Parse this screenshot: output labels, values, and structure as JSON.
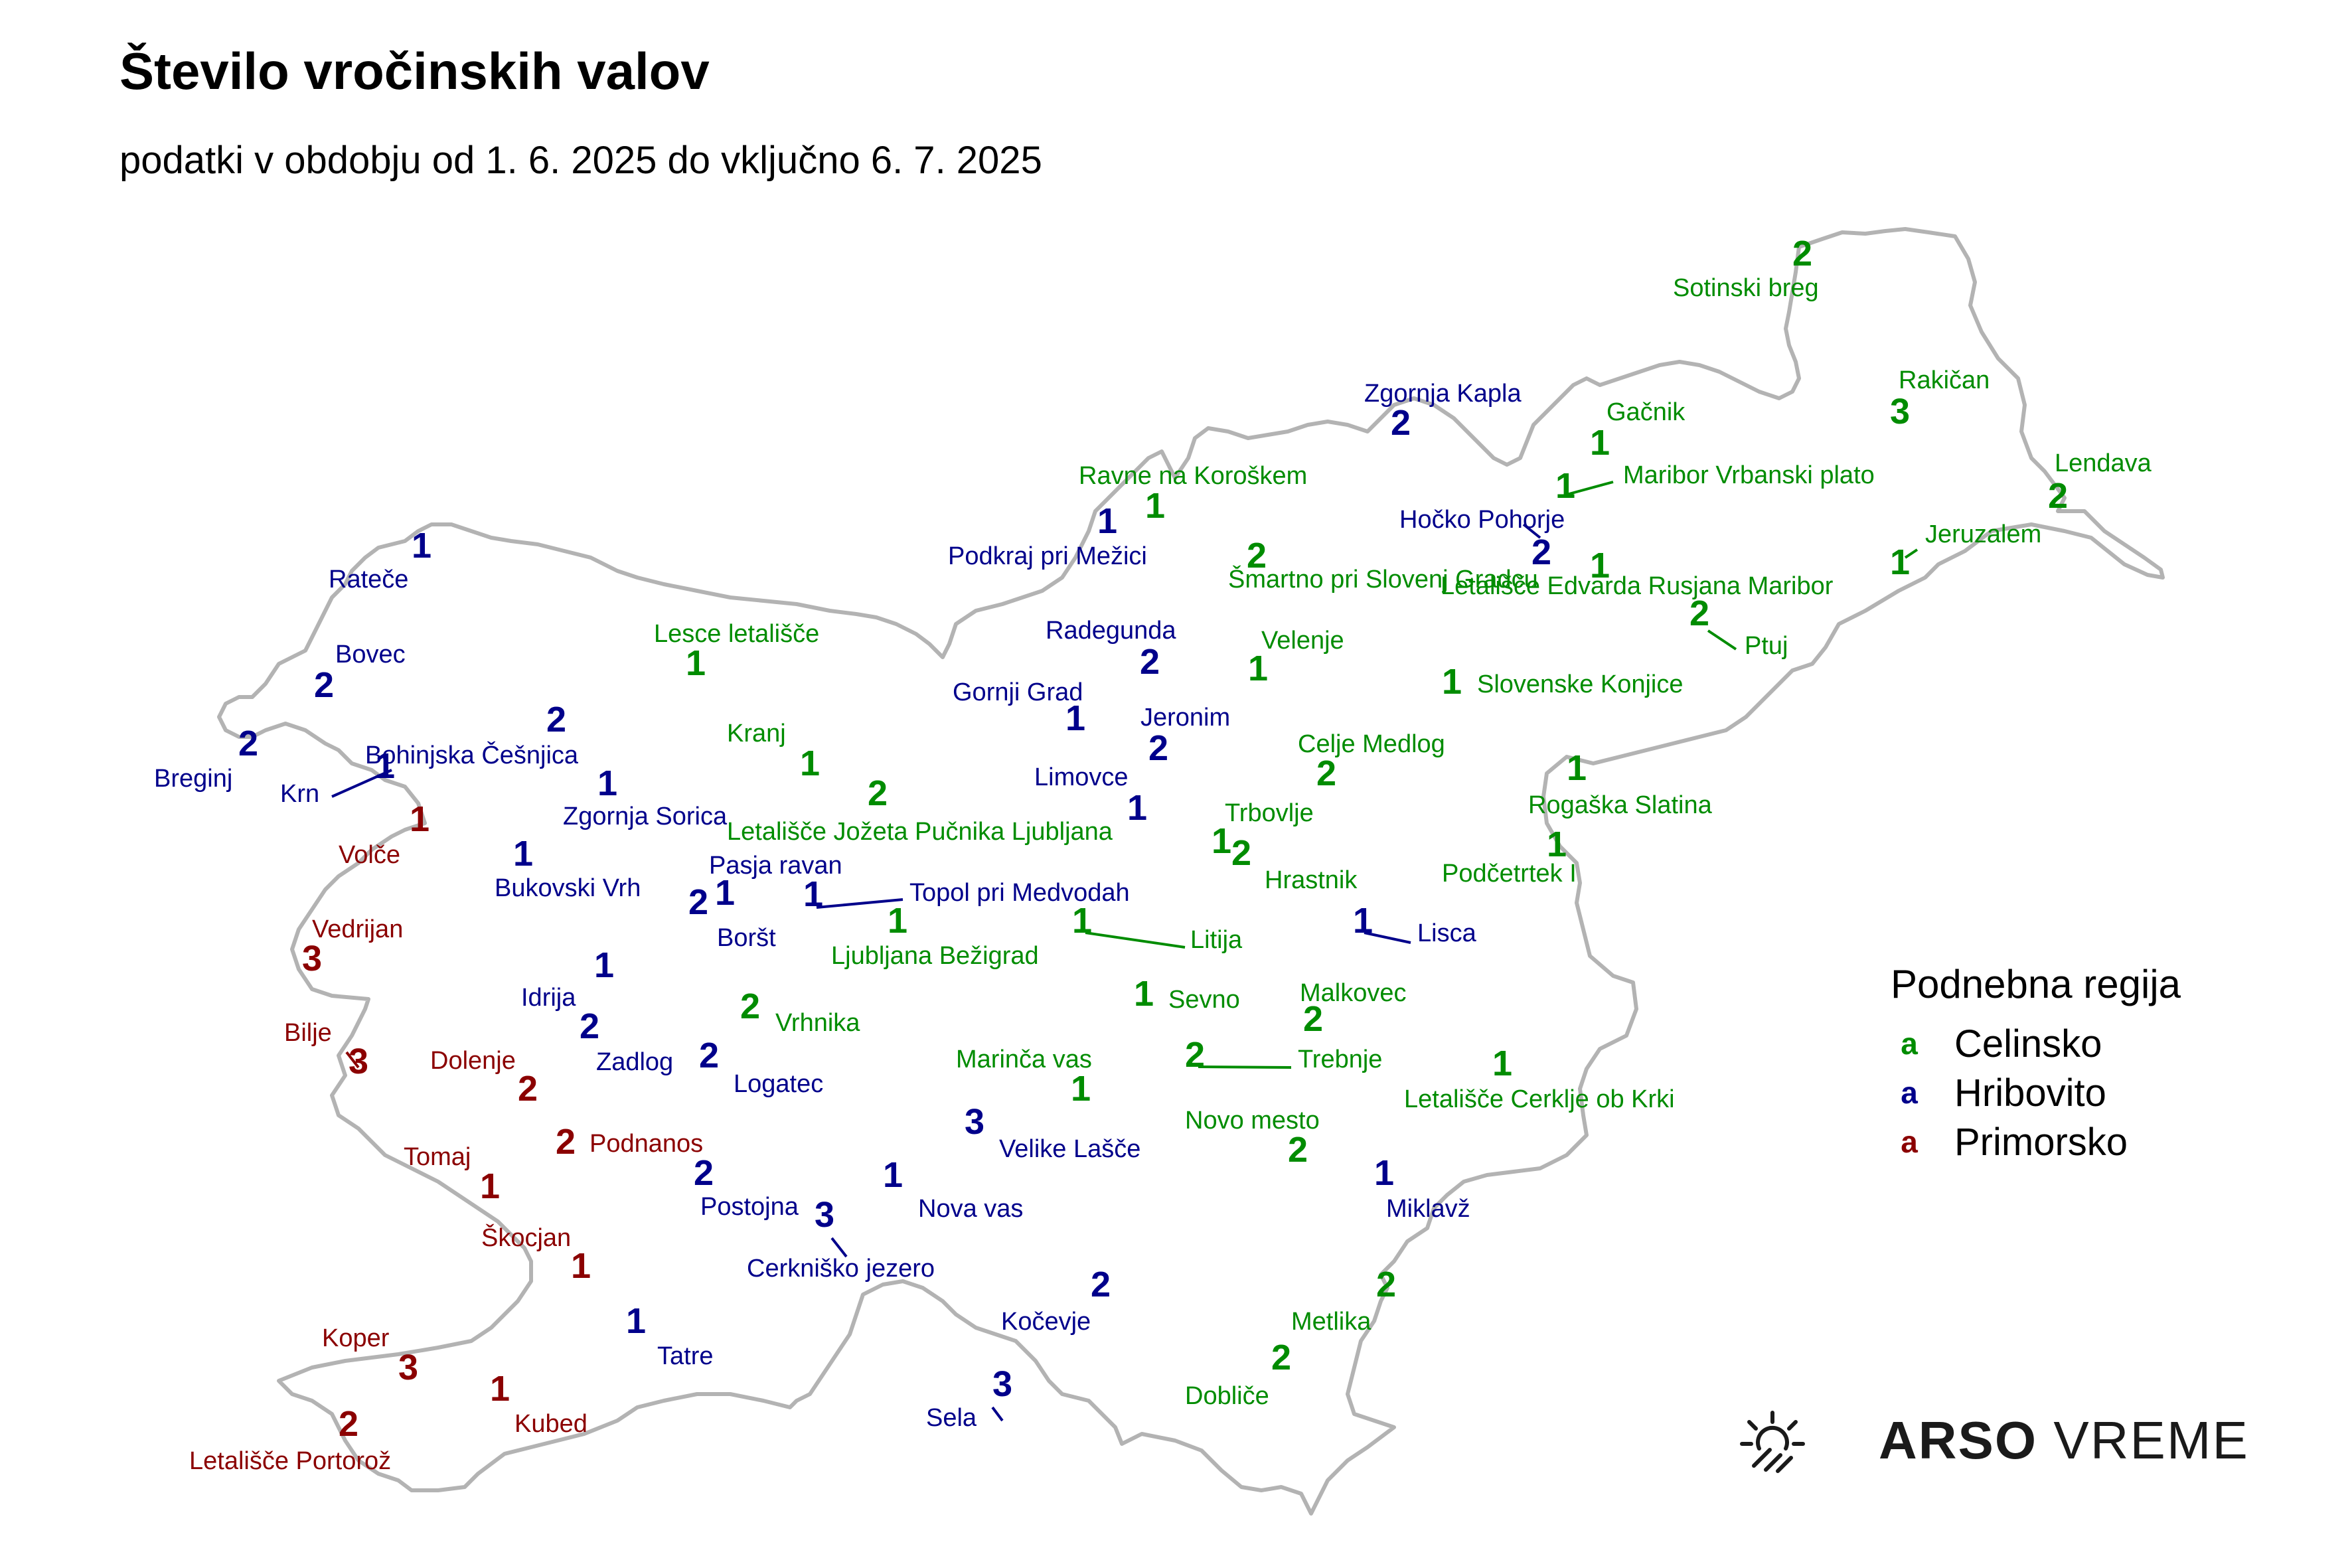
{
  "title": "Število vročinskih valov",
  "subtitle": "podatki v obdobju od 1. 6. 2025 do vključno 6. 7. 2025",
  "colors": {
    "Celinsko": "#008c00",
    "Hribovito": "#00008b",
    "Primorsko": "#8b0000"
  },
  "legend": {
    "title": "Podnebna regija",
    "key_glyph": "a",
    "items": [
      {
        "label": "Celinsko",
        "region": "Celinsko"
      },
      {
        "label": "Hribovito",
        "region": "Hribovito"
      },
      {
        "label": "Primorsko",
        "region": "Primorsko"
      }
    ]
  },
  "logo": {
    "bold": "ARSO",
    "light": "VREME",
    "icon": "sun-heat-icon"
  },
  "stations": [
    {
      "name": "Sotinski breg",
      "region": "Celinsko",
      "count": 2
    },
    {
      "name": "Zgornja Kapla",
      "region": "Hribovito",
      "count": 2
    },
    {
      "name": "Gačnik",
      "region": "Celinsko",
      "count": 1
    },
    {
      "name": "Rakičan",
      "region": "Celinsko",
      "count": 3
    },
    {
      "name": "Lendava",
      "region": "Celinsko",
      "count": 2
    },
    {
      "name": "Maribor Vrbanski plato",
      "region": "Celinsko",
      "count": 1
    },
    {
      "name": "Ravne na Koroškem",
      "region": "Celinsko",
      "count": 1
    },
    {
      "name": "Hočko Pohorje",
      "region": "Hribovito",
      "count": 2
    },
    {
      "name": "Jeruzalem",
      "region": "Celinsko",
      "count": 1
    },
    {
      "name": "Podkraj pri Mežici",
      "region": "Hribovito",
      "count": 1
    },
    {
      "name": "Šmartno pri Slovenj Gradcu",
      "region": "Celinsko",
      "count": 2
    },
    {
      "name": "Letališče Edvarda Rusjana Maribor",
      "region": "Celinsko",
      "count": 1
    },
    {
      "name": "Rateče",
      "region": "Hribovito",
      "count": 1
    },
    {
      "name": "Ptuj",
      "region": "Celinsko",
      "count": 2
    },
    {
      "name": "Radegunda",
      "region": "Hribovito",
      "count": 2
    },
    {
      "name": "Lesce letališče",
      "region": "Celinsko",
      "count": 1
    },
    {
      "name": "Velenje",
      "region": "Celinsko",
      "count": 1
    },
    {
      "name": "Bovec",
      "region": "Hribovito",
      "count": 2
    },
    {
      "name": "Slovenske Konjice",
      "region": "Celinsko",
      "count": 1
    },
    {
      "name": "Gornji Grad",
      "region": "Hribovito",
      "count": 1
    },
    {
      "name": "Jeronim",
      "region": "Hribovito",
      "count": 2
    },
    {
      "name": "Kranj",
      "region": "Celinsko",
      "count": 1
    },
    {
      "name": "Celje Medlog",
      "region": "Celinsko",
      "count": 2
    },
    {
      "name": "Bohinjska Češnjica",
      "region": "Hribovito",
      "count": 2
    },
    {
      "name": "Breginj",
      "region": "Hribovito",
      "count": 2
    },
    {
      "name": "Krn",
      "region": "Hribovito",
      "count": 1
    },
    {
      "name": "Limovce",
      "region": "Hribovito",
      "count": 1
    },
    {
      "name": "Rogaška Slatina",
      "region": "Celinsko",
      "count": 1
    },
    {
      "name": "Zgornja Sorica",
      "region": "Hribovito",
      "count": 1
    },
    {
      "name": "Letališče Jožeta Pučnika Ljubljana",
      "region": "Celinsko",
      "count": 2
    },
    {
      "name": "Trbovlje",
      "region": "Celinsko",
      "count": 1
    },
    {
      "name": "Volče",
      "region": "Primorsko",
      "count": 1
    },
    {
      "name": "Hrastnik",
      "region": "Celinsko",
      "count": 2
    },
    {
      "name": "Podčetrtek I",
      "region": "Celinsko",
      "count": 1
    },
    {
      "name": "Pasja ravan",
      "region": "Hribovito",
      "count": 1
    },
    {
      "name": "Bukovski Vrh",
      "region": "Hribovito",
      "count": 1
    },
    {
      "name": "Topol pri Medvodah",
      "region": "Hribovito",
      "count": 1
    },
    {
      "name": "Boršt",
      "region": "Hribovito",
      "count": 2
    },
    {
      "name": "Vedrijan",
      "region": "Primorsko",
      "count": 3
    },
    {
      "name": "Ljubljana Bežigrad",
      "region": "Celinsko",
      "count": 1
    },
    {
      "name": "Lisca",
      "region": "Hribovito",
      "count": 1
    },
    {
      "name": "Litija",
      "region": "Celinsko",
      "count": 1
    },
    {
      "name": "Idrija",
      "region": "Hribovito",
      "count": 1
    },
    {
      "name": "Sevno",
      "region": "Celinsko",
      "count": 1
    },
    {
      "name": "Malkovec",
      "region": "Celinsko",
      "count": 2
    },
    {
      "name": "Bilje",
      "region": "Primorsko",
      "count": 3
    },
    {
      "name": "Vrhnika",
      "region": "Celinsko",
      "count": 2
    },
    {
      "name": "Zadlog",
      "region": "Hribovito",
      "count": 2
    },
    {
      "name": "Dolenje",
      "region": "Primorsko",
      "count": 2
    },
    {
      "name": "Marinča vas",
      "region": "Celinsko",
      "count": 1
    },
    {
      "name": "Trebnje",
      "region": "Celinsko",
      "count": 2
    },
    {
      "name": "Logatec",
      "region": "Hribovito",
      "count": 2
    },
    {
      "name": "Letališče Cerklje ob Krki",
      "region": "Celinsko",
      "count": 1
    },
    {
      "name": "Novo mesto",
      "region": "Celinsko",
      "count": 2
    },
    {
      "name": "Velike Lašče",
      "region": "Hribovito",
      "count": 3
    },
    {
      "name": "Podnanos",
      "region": "Primorsko",
      "count": 2
    },
    {
      "name": "Tomaj",
      "region": "Primorsko",
      "count": 1
    },
    {
      "name": "Postojna",
      "region": "Hribovito",
      "count": 2
    },
    {
      "name": "Nova vas",
      "region": "Hribovito",
      "count": 1
    },
    {
      "name": "Miklavž",
      "region": "Hribovito",
      "count": 1
    },
    {
      "name": "Škocjan",
      "region": "Primorsko",
      "count": 1
    },
    {
      "name": "Cerkniško jezero",
      "region": "Hribovito",
      "count": 3
    },
    {
      "name": "Kočevje",
      "region": "Hribovito",
      "count": 2
    },
    {
      "name": "Metlika",
      "region": "Celinsko",
      "count": 2
    },
    {
      "name": "Koper",
      "region": "Primorsko",
      "count": 3
    },
    {
      "name": "Tatre",
      "region": "Hribovito",
      "count": 1
    },
    {
      "name": "Kubed",
      "region": "Primorsko",
      "count": 1
    },
    {
      "name": "Dobliče",
      "region": "Celinsko",
      "count": 2
    },
    {
      "name": "Sela",
      "region": "Hribovito",
      "count": 3
    },
    {
      "name": "Letališče Portorož",
      "region": "Primorsko",
      "count": 2
    }
  ]
}
